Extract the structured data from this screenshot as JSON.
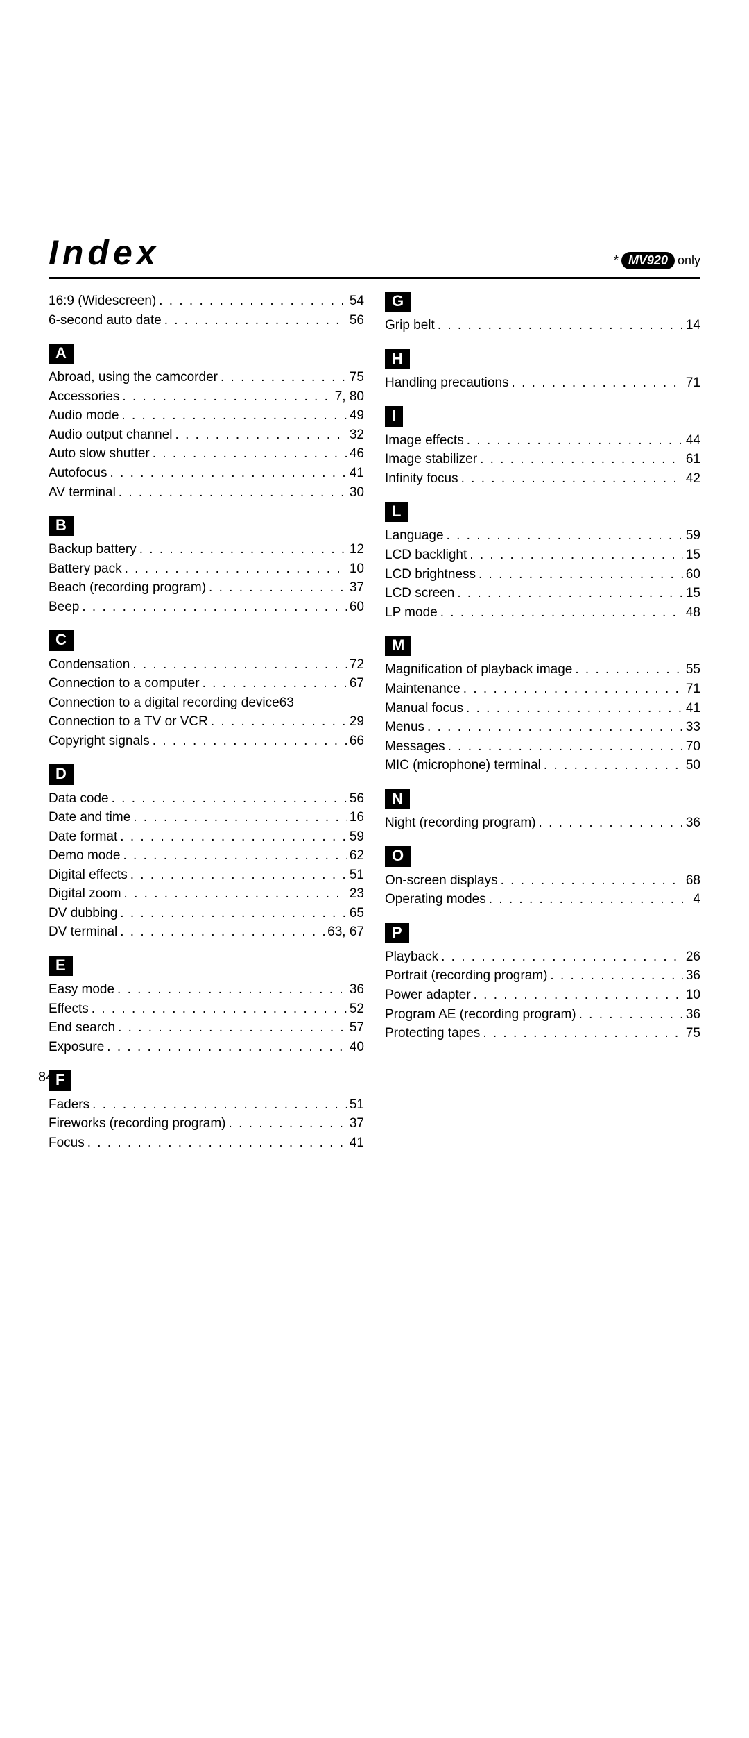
{
  "title": "Index",
  "note_prefix": "*",
  "note_model": "MV920",
  "note_suffix": "only",
  "page_number": "84",
  "left": {
    "top": [
      {
        "term": "16:9 (Widescreen)",
        "pg": "54"
      },
      {
        "term": "6-second auto date",
        "pg": "56"
      }
    ],
    "A": [
      {
        "term": "Abroad, using the camcorder",
        "pg": "75"
      },
      {
        "term": "Accessories",
        "pg": "7, 80"
      },
      {
        "term": "Audio mode",
        "pg": "49"
      },
      {
        "term": "Audio output channel",
        "pg": "32"
      },
      {
        "term": "Auto slow shutter",
        "pg": "46"
      },
      {
        "term": "Autofocus",
        "pg": "41"
      },
      {
        "term": "AV terminal",
        "pg": "30"
      }
    ],
    "B": [
      {
        "term": "Backup battery",
        "pg": "12"
      },
      {
        "term": "Battery pack",
        "pg": "10"
      },
      {
        "term": "Beach (recording program)",
        "pg": "37"
      },
      {
        "term": "Beep",
        "pg": "60"
      }
    ],
    "C": [
      {
        "term": "Condensation",
        "pg": "72"
      },
      {
        "term": "Connection to a computer",
        "pg": "67"
      },
      {
        "term": "Connection to a digital recording device",
        "pg": "63",
        "nodots": true
      },
      {
        "term": "Connection to a TV or VCR",
        "pg": "29"
      },
      {
        "term": "Copyright signals",
        "pg": "66"
      }
    ],
    "D": [
      {
        "term": "Data code",
        "pg": "56"
      },
      {
        "term": "Date and time",
        "pg": "16"
      },
      {
        "term": "Date format",
        "pg": "59"
      },
      {
        "term": "Demo mode",
        "pg": "62"
      },
      {
        "term": "Digital effects",
        "pg": "51"
      },
      {
        "term": "Digital zoom",
        "pg": "23"
      },
      {
        "term": "DV dubbing",
        "pg": "65"
      },
      {
        "term": "DV terminal",
        "pg": "63, 67"
      }
    ],
    "E": [
      {
        "term": "Easy mode",
        "pg": "36"
      },
      {
        "term": "Effects",
        "pg": "52"
      },
      {
        "term": "End search",
        "pg": "57"
      },
      {
        "term": "Exposure",
        "pg": "40"
      }
    ],
    "F": [
      {
        "term": "Faders",
        "pg": "51"
      },
      {
        "term": "Fireworks (recording program)",
        "pg": "37"
      },
      {
        "term": "Focus",
        "pg": "41"
      }
    ]
  },
  "right": {
    "G": [
      {
        "term": "Grip belt",
        "pg": "14"
      }
    ],
    "H": [
      {
        "term": "Handling precautions",
        "pg": "71"
      }
    ],
    "I": [
      {
        "term": "Image effects",
        "pg": "44"
      },
      {
        "term": "Image stabilizer",
        "pg": "61"
      },
      {
        "term": "Infinity focus",
        "pg": "42"
      }
    ],
    "L": [
      {
        "term": "Language",
        "pg": "59"
      },
      {
        "term": "LCD backlight",
        "pg": "15"
      },
      {
        "term": "LCD brightness",
        "pg": "60"
      },
      {
        "term": "LCD screen",
        "pg": "15"
      },
      {
        "term": "LP mode",
        "pg": "48"
      }
    ],
    "M": [
      {
        "term": "Magnification of playback image",
        "pg": "55"
      },
      {
        "term": "Maintenance",
        "pg": "71"
      },
      {
        "term": "Manual focus",
        "pg": "41"
      },
      {
        "term": "Menus",
        "pg": "33"
      },
      {
        "term": "Messages",
        "pg": "70"
      },
      {
        "term": "MIC (microphone) terminal",
        "pg": "50"
      }
    ],
    "N": [
      {
        "term": "Night (recording program)",
        "pg": "36"
      }
    ],
    "O": [
      {
        "term": "On-screen displays",
        "pg": "68"
      },
      {
        "term": "Operating modes",
        "pg": "4"
      }
    ],
    "P": [
      {
        "term": "Playback",
        "pg": "26"
      },
      {
        "term": "Portrait (recording program)",
        "pg": "36"
      },
      {
        "term": "Power adapter",
        "pg": "10"
      },
      {
        "term": "Program AE (recording program)",
        "pg": "36"
      },
      {
        "term": "Protecting tapes",
        "pg": "75"
      }
    ]
  }
}
